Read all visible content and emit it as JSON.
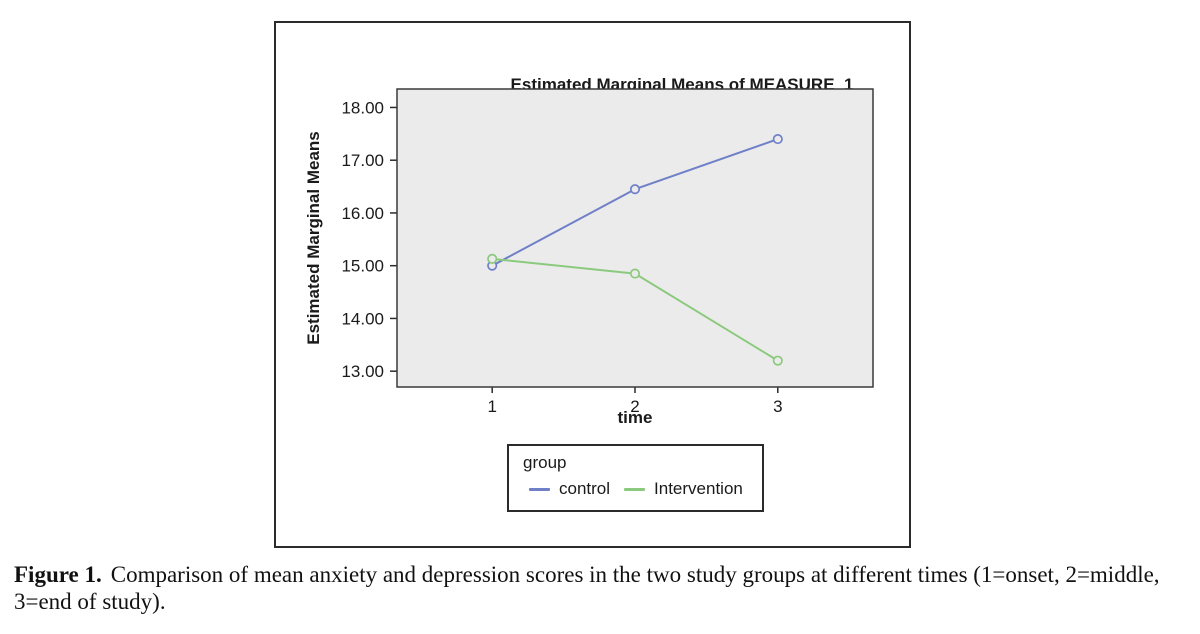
{
  "figure": {
    "chart": {
      "title": "Estimated Marginal Means of MEASURE_1",
      "y_axis_label": "Estimated Marginal Means",
      "x_axis_label": "time",
      "y_tick_labels": [
        "18.00",
        "17.00",
        "16.00",
        "15.00",
        "14.00",
        "13.00"
      ],
      "x_tick_labels": [
        "1",
        "2",
        "3"
      ]
    },
    "legend": {
      "title": "group",
      "entries": [
        {
          "label": "control",
          "color": "#7080c8"
        },
        {
          "label": "Intervention",
          "color": "#8bca7d"
        }
      ]
    }
  },
  "caption": {
    "label": "Figure 1.",
    "text": "Comparison of mean anxiety and depression scores in the two study groups at different times (1=onset, 2=middle, 3=end of study)."
  },
  "chart_data": {
    "type": "line",
    "title": "Estimated Marginal Means of MEASURE_1",
    "xlabel": "time",
    "ylabel": "Estimated Marginal Means",
    "x": [
      1,
      2,
      3
    ],
    "series": [
      {
        "name": "control",
        "color": "#7080c8",
        "values": [
          15.0,
          16.45,
          17.4
        ]
      },
      {
        "name": "Intervention",
        "color": "#8bca7d",
        "values": [
          15.13,
          14.85,
          13.2
        ]
      }
    ],
    "y_ticks": [
      13,
      14,
      15,
      16,
      17,
      18
    ],
    "ylim": [
      12.7,
      18.35
    ],
    "grid": false,
    "legend_position": "bottom",
    "legend_title": "group",
    "plot_bg": "#ebebec",
    "frame_color": "#3a3a3a",
    "marker": "open-circle"
  }
}
